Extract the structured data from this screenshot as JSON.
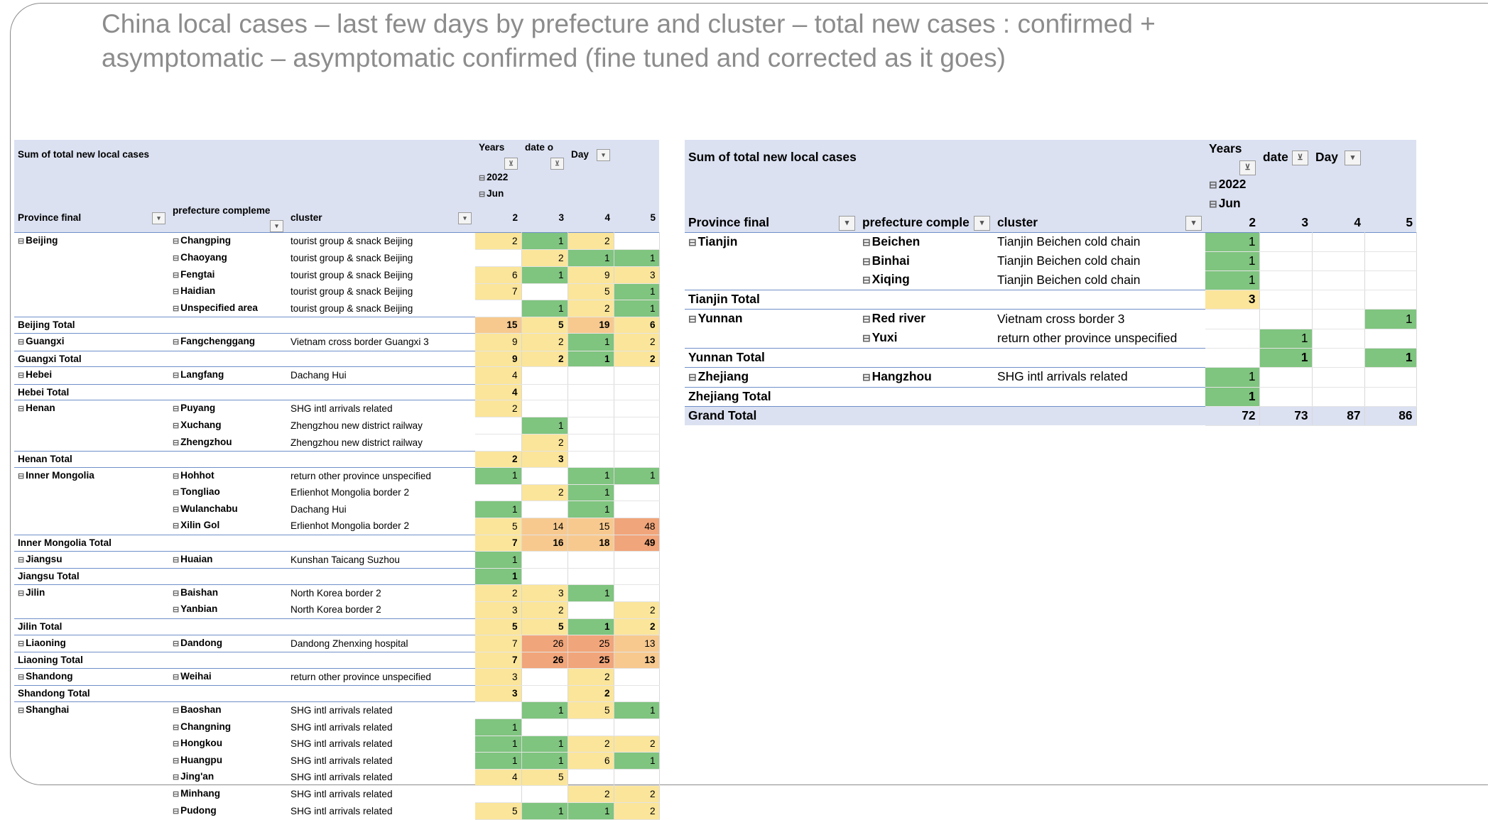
{
  "slide": {
    "title_line1": "China local cases – last few days by prefecture and cluster – total new cases : confirmed +",
    "title_line2": "asymptomatic – asymptomatic confirmed (fine tuned and corrected as it goes)"
  },
  "colors": {
    "green": "#7fc47f",
    "yellow": "#fbe59a",
    "orange": "#f7c98f",
    "dark_orange": "#f1a57a",
    "red": "#e8736f",
    "header_band": "#dbe1f1"
  },
  "left_table": {
    "header": {
      "title": "Sum of total new local cases",
      "years_label": "Years",
      "date_label": "date o",
      "day_label": "Day",
      "year_value": "2022",
      "month_value": "Jun",
      "col_province": "Province final",
      "col_prefecture": "prefecture compleme",
      "col_cluster": "cluster",
      "days": [
        "2",
        "3",
        "4",
        "5"
      ]
    },
    "rows": [
      {
        "province": "Beijing",
        "prefecture": "Changping",
        "cluster": "tourist group & snack Beijing",
        "v": [
          "2",
          "1",
          "2",
          ""
        ]
      },
      {
        "province": "",
        "prefecture": "Chaoyang",
        "cluster": "tourist group & snack Beijing",
        "v": [
          "",
          "2",
          "1",
          "1"
        ]
      },
      {
        "province": "",
        "prefecture": "Fengtai",
        "cluster": "tourist group & snack Beijing",
        "v": [
          "6",
          "1",
          "9",
          "3"
        ]
      },
      {
        "province": "",
        "prefecture": "Haidian",
        "cluster": "tourist group & snack Beijing",
        "v": [
          "7",
          "",
          "5",
          "1"
        ]
      },
      {
        "province": "",
        "prefecture": "Unspecified area",
        "cluster": "tourist group & snack Beijing",
        "v": [
          "",
          "1",
          "2",
          "1"
        ]
      },
      {
        "total": "Beijing Total",
        "v": [
          "15",
          "5",
          "19",
          "6"
        ]
      },
      {
        "province": "Guangxi",
        "prefecture": "Fangchenggang",
        "cluster": "Vietnam cross border Guangxi 3",
        "v": [
          "9",
          "2",
          "1",
          "2"
        ]
      },
      {
        "total": "Guangxi Total",
        "v": [
          "9",
          "2",
          "1",
          "2"
        ]
      },
      {
        "province": "Hebei",
        "prefecture": "Langfang",
        "cluster": "Dachang Hui",
        "v": [
          "4",
          "",
          "",
          ""
        ]
      },
      {
        "total": "Hebei Total",
        "v": [
          "4",
          "",
          "",
          ""
        ]
      },
      {
        "province": "Henan",
        "prefecture": "Puyang",
        "cluster": "SHG intl arrivals related",
        "v": [
          "2",
          "",
          "",
          ""
        ]
      },
      {
        "province": "",
        "prefecture": "Xuchang",
        "cluster": "Zhengzhou new district railway",
        "v": [
          "",
          "1",
          "",
          ""
        ]
      },
      {
        "province": "",
        "prefecture": "Zhengzhou",
        "cluster": "Zhengzhou new district railway",
        "v": [
          "",
          "2",
          "",
          ""
        ]
      },
      {
        "total": "Henan Total",
        "v": [
          "2",
          "3",
          "",
          ""
        ]
      },
      {
        "province": "Inner Mongolia",
        "prefecture": "Hohhot",
        "cluster": "return other province unspecified",
        "v": [
          "1",
          "",
          "1",
          "1"
        ]
      },
      {
        "province": "",
        "prefecture": "Tongliao",
        "cluster": "Erlienhot Mongolia border 2",
        "v": [
          "",
          "2",
          "1",
          ""
        ]
      },
      {
        "province": "",
        "prefecture": "Wulanchabu",
        "cluster": "Dachang Hui",
        "v": [
          "1",
          "",
          "1",
          ""
        ]
      },
      {
        "province": "",
        "prefecture": "Xilin Gol",
        "cluster": "Erlienhot Mongolia border 2",
        "v": [
          "5",
          "14",
          "15",
          "48"
        ]
      },
      {
        "total": "Inner Mongolia Total",
        "v": [
          "7",
          "16",
          "18",
          "49"
        ]
      },
      {
        "province": "Jiangsu",
        "prefecture": "Huaian",
        "cluster": "Kunshan Taicang Suzhou",
        "v": [
          "1",
          "",
          "",
          ""
        ]
      },
      {
        "total": "Jiangsu Total",
        "v": [
          "1",
          "",
          "",
          ""
        ]
      },
      {
        "province": "Jilin",
        "prefecture": "Baishan",
        "cluster": "North Korea border 2",
        "v": [
          "2",
          "3",
          "1",
          ""
        ]
      },
      {
        "province": "",
        "prefecture": "Yanbian",
        "cluster": "North Korea border 2",
        "v": [
          "3",
          "2",
          "",
          "2"
        ]
      },
      {
        "total": "Jilin Total",
        "v": [
          "5",
          "5",
          "1",
          "2"
        ]
      },
      {
        "province": "Liaoning",
        "prefecture": "Dandong",
        "cluster": "Dandong Zhenxing hospital",
        "v": [
          "7",
          "26",
          "25",
          "13"
        ]
      },
      {
        "total": "Liaoning Total",
        "v": [
          "7",
          "26",
          "25",
          "13"
        ]
      },
      {
        "province": "Shandong",
        "prefecture": "Weihai",
        "cluster": "return other province unspecified",
        "v": [
          "3",
          "",
          "2",
          ""
        ]
      },
      {
        "total": "Shandong Total",
        "v": [
          "3",
          "",
          "2",
          ""
        ]
      },
      {
        "province": "Shanghai",
        "prefecture": "Baoshan",
        "cluster": "SHG intl arrivals related",
        "v": [
          "",
          "1",
          "5",
          "1"
        ]
      },
      {
        "province": "",
        "prefecture": "Changning",
        "cluster": "SHG intl arrivals related",
        "v": [
          "1",
          "",
          "",
          ""
        ]
      },
      {
        "province": "",
        "prefecture": "Hongkou",
        "cluster": "SHG intl arrivals related",
        "v": [
          "1",
          "1",
          "2",
          "2"
        ]
      },
      {
        "province": "",
        "prefecture": "Huangpu",
        "cluster": "SHG intl arrivals related",
        "v": [
          "1",
          "1",
          "6",
          "1"
        ]
      },
      {
        "province": "",
        "prefecture": "Jing'an",
        "cluster": "SHG intl arrivals related",
        "v": [
          "4",
          "5",
          "",
          ""
        ]
      },
      {
        "province": "",
        "prefecture": "Minhang",
        "cluster": "SHG intl arrivals related",
        "v": [
          "",
          "",
          "2",
          "2"
        ]
      },
      {
        "province": "",
        "prefecture": "Pudong",
        "cluster": "SHG intl arrivals related",
        "v": [
          "5",
          "1",
          "1",
          "2"
        ]
      }
    ]
  },
  "right_table": {
    "header": {
      "title": "Sum of total new local cases",
      "years_label": "Years",
      "date_label": "date",
      "day_label": "Day",
      "year_value": "2022",
      "month_value": "Jun",
      "col_province": "Province final",
      "col_prefecture": "prefecture comple",
      "col_cluster": "cluster",
      "days": [
        "2",
        "3",
        "4",
        "5"
      ]
    },
    "rows": [
      {
        "province": "Tianjin",
        "prefecture": "Beichen",
        "cluster": "Tianjin Beichen cold chain",
        "v": [
          "1",
          "",
          "",
          ""
        ]
      },
      {
        "province": "",
        "prefecture": "Binhai",
        "cluster": "Tianjin Beichen cold chain",
        "v": [
          "1",
          "",
          "",
          ""
        ]
      },
      {
        "province": "",
        "prefecture": "Xiqing",
        "cluster": "Tianjin Beichen cold chain",
        "v": [
          "1",
          "",
          "",
          ""
        ]
      },
      {
        "total": "Tianjin Total",
        "v": [
          "3",
          "",
          "",
          ""
        ]
      },
      {
        "province": "Yunnan",
        "prefecture": "Red river",
        "cluster": "Vietnam cross border 3",
        "v": [
          "",
          "",
          "",
          "1"
        ]
      },
      {
        "province": "",
        "prefecture": "Yuxi",
        "cluster": "return other province unspecified",
        "v": [
          "",
          "1",
          "",
          ""
        ]
      },
      {
        "total": "Yunnan Total",
        "v": [
          "",
          "1",
          "",
          "1"
        ]
      },
      {
        "province": "Zhejiang",
        "prefecture": "Hangzhou",
        "cluster": "SHG intl arrivals related",
        "v": [
          "1",
          "",
          "",
          ""
        ]
      },
      {
        "total": "Zhejiang Total",
        "v": [
          "1",
          "",
          "",
          ""
        ]
      },
      {
        "grand": "Grand Total",
        "v": [
          "72",
          "73",
          "87",
          "86"
        ]
      }
    ]
  }
}
